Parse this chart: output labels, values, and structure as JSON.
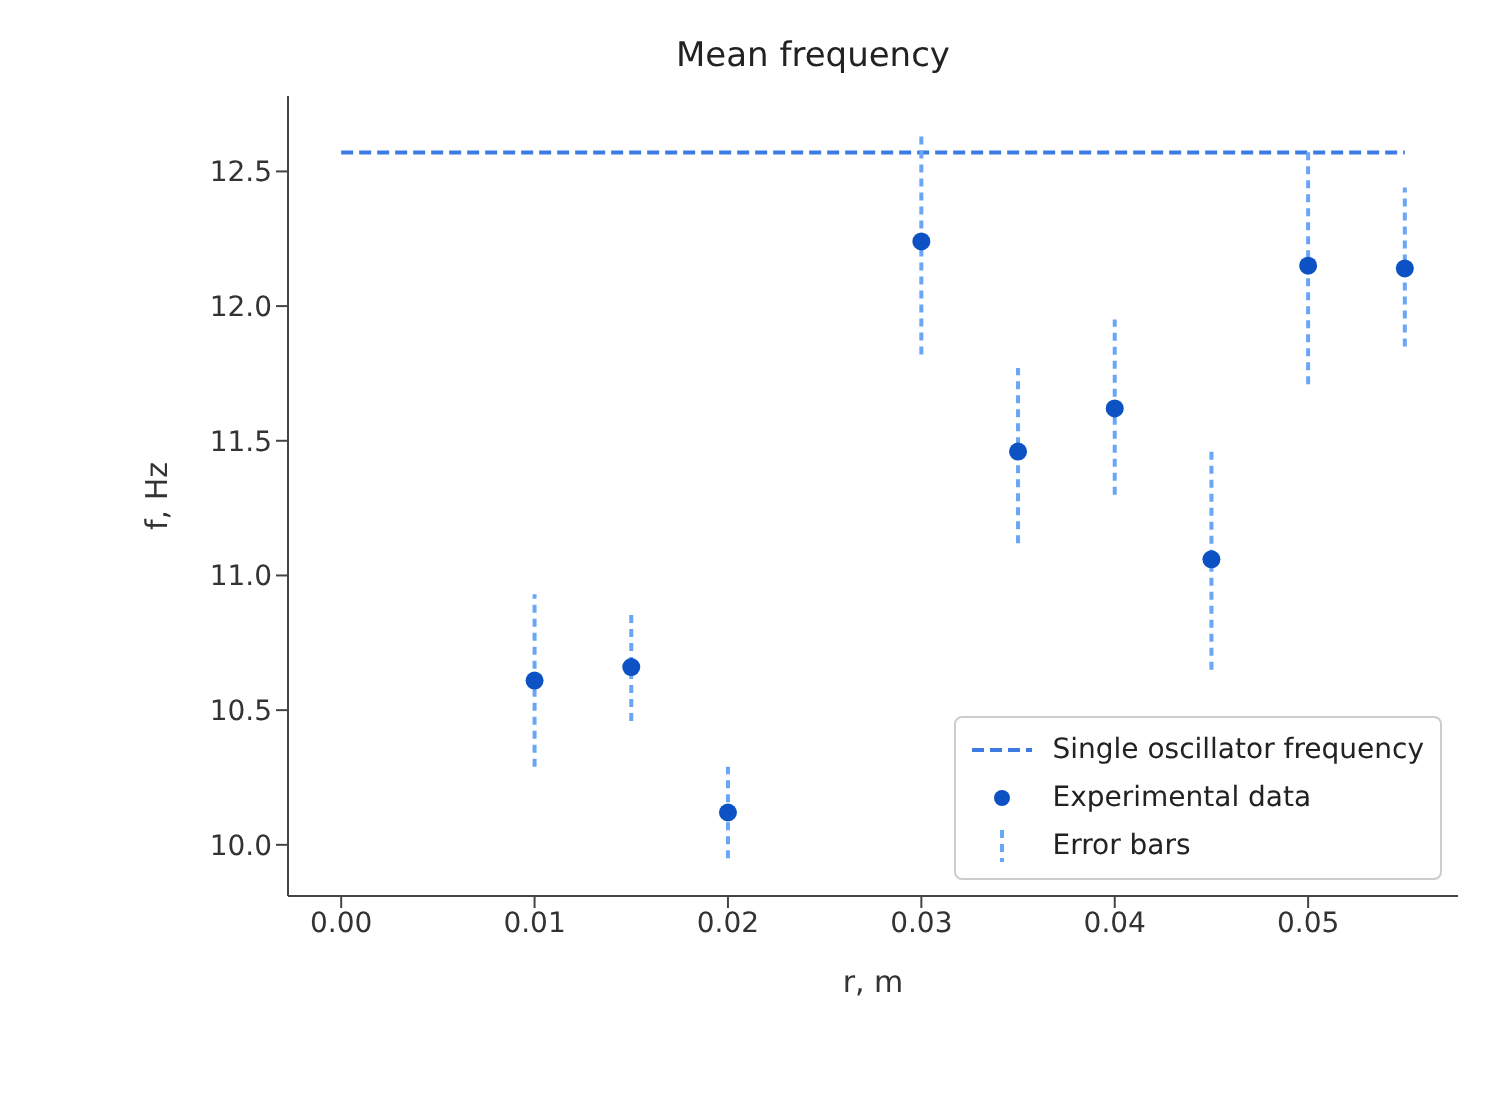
{
  "chart_data": {
    "type": "scatter",
    "title": "Mean frequency",
    "xlabel": "r, m",
    "ylabel": "f, Hz",
    "xlim": [
      -0.00275,
      0.05775
    ],
    "xticks": [
      {
        "value": 0,
        "label": "0.00"
      },
      {
        "value": 0.01,
        "label": "0.01"
      },
      {
        "value": 0.02,
        "label": "0.02"
      },
      {
        "value": 0.03,
        "label": "0.03"
      },
      {
        "value": 0.04,
        "label": "0.04"
      },
      {
        "value": 0.05,
        "label": "0.05"
      }
    ],
    "ylim": [
      9.81,
      12.78
    ],
    "yticks": [
      {
        "value": 10,
        "label": "10.0"
      },
      {
        "value": 10.5,
        "label": "10.5"
      },
      {
        "value": 11,
        "label": "11.0"
      },
      {
        "value": 11.5,
        "label": "11.5"
      },
      {
        "value": 12,
        "label": "12.0"
      },
      {
        "value": 12.5,
        "label": "12.5"
      }
    ],
    "series": [
      {
        "name": "Single oscillator frequency",
        "type": "line",
        "line_style": "dashed",
        "marker": "none",
        "color": "#3c7be6",
        "x": [
          0,
          0.055
        ],
        "values": [
          12.57,
          12.57
        ]
      },
      {
        "name": "Experimental data",
        "marker": "circle",
        "color": "#0d52c4",
        "x": [
          0.01,
          0.015,
          0.02,
          0.03,
          0.035,
          0.04,
          0.045,
          0.05,
          0.055
        ],
        "values": [
          10.61,
          10.66,
          10.12,
          12.24,
          11.46,
          11.62,
          11.06,
          12.15,
          12.14
        ],
        "errors": [
          [
            10.29,
            10.93
          ],
          [
            10.46,
            10.86
          ],
          [
            9.95,
            10.29
          ],
          [
            11.82,
            12.64
          ],
          [
            11.12,
            11.77
          ],
          [
            11.3,
            11.95
          ],
          [
            10.65,
            11.48
          ],
          [
            11.71,
            12.58
          ],
          [
            11.85,
            12.44
          ]
        ]
      }
    ],
    "annotations": [
      "Error bars"
    ],
    "legend": "bottom right",
    "grid": false
  }
}
